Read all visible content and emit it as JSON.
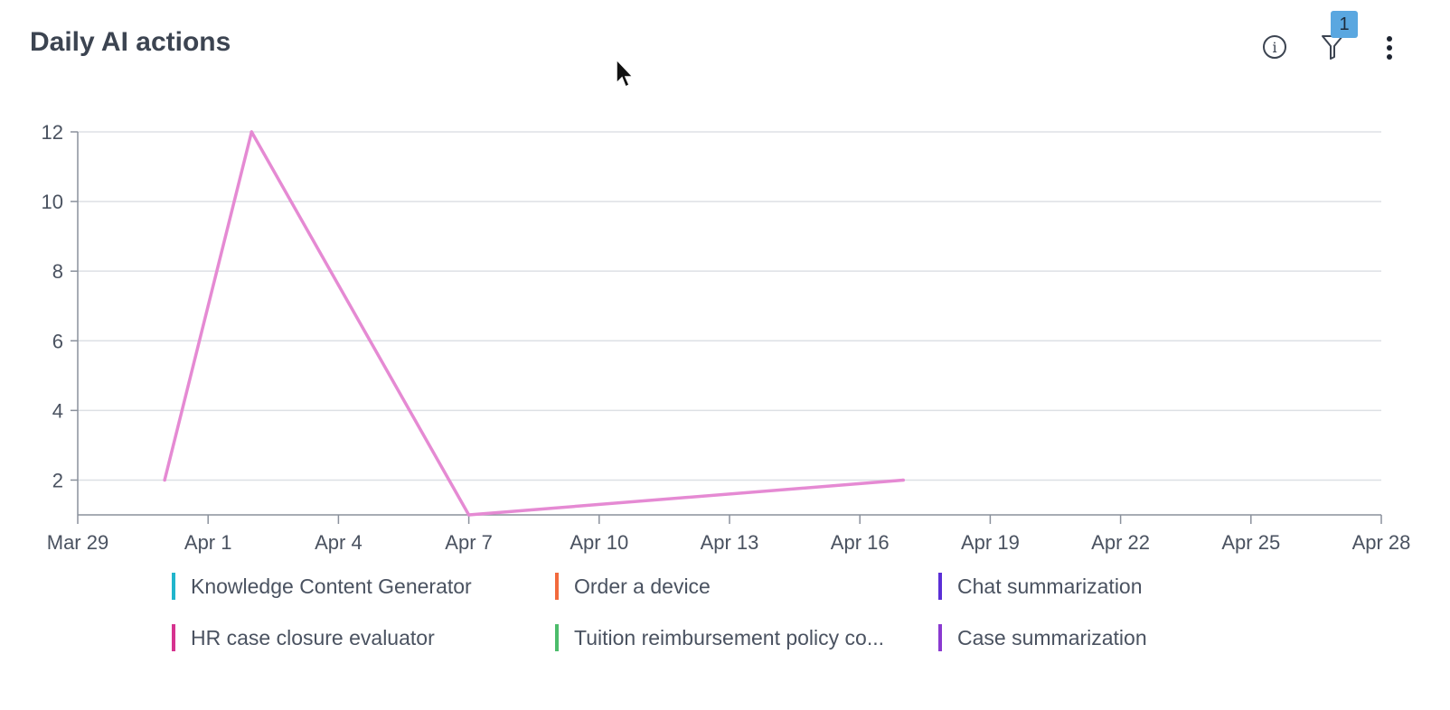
{
  "header": {
    "title": "Daily AI actions",
    "filter_count": "1",
    "info_icon": "info-icon",
    "filter_icon": "filter-icon",
    "more_icon": "more-vertical-icon"
  },
  "chart_data": {
    "type": "line",
    "x_type": "date",
    "x_range": [
      "Mar 29",
      "Apr 28"
    ],
    "y_range": [
      1,
      12
    ],
    "y_ticks": [
      "2",
      "4",
      "6",
      "8",
      "10",
      "12"
    ],
    "x_ticks": [
      "Mar 29",
      "Apr 1",
      "Apr 4",
      "Apr 7",
      "Apr 10",
      "Apr 13",
      "Apr 16",
      "Apr 19",
      "Apr 22",
      "Apr 25",
      "Apr 28"
    ],
    "grid": true,
    "legend_placement": "bottom",
    "series": [
      {
        "name": "HR case closure evaluator",
        "color": "#e58ad3",
        "points": [
          {
            "x": "Mar 31",
            "y": 2
          },
          {
            "x": "Apr 2",
            "y": 12
          },
          {
            "x": "Apr 7",
            "y": 1
          },
          {
            "x": "Apr 17",
            "y": 2
          }
        ]
      }
    ],
    "legend": [
      {
        "label": "Knowledge Content Generator",
        "color": "#21b5cc"
      },
      {
        "label": "Order a device",
        "color": "#f26a3d"
      },
      {
        "label": "Chat summarization",
        "color": "#5b2fd6"
      },
      {
        "label": "HR case closure evaluator",
        "color": "#d6338f"
      },
      {
        "label": "Tuition reimbursement policy co...",
        "color": "#4cbc6b"
      },
      {
        "label": "Case summarization",
        "color": "#8a3ad0"
      }
    ]
  }
}
